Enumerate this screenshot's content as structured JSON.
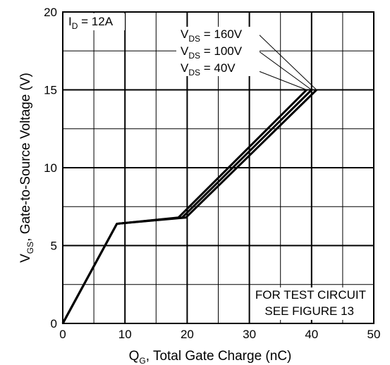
{
  "chart_data": {
    "type": "line",
    "title": "",
    "xlabel": {
      "main": "Q",
      "sub": "G",
      "rest": ", Total Gate Charge (nC)"
    },
    "ylabel": {
      "main": "V",
      "sub": "GS",
      "rest": ", Gate-to-Source Voltage (V)"
    },
    "xlim": [
      0,
      50
    ],
    "ylim": [
      0,
      20
    ],
    "x_major_ticks": [
      0,
      10,
      20,
      30,
      40,
      50
    ],
    "y_major_ticks": [
      0,
      5,
      10,
      15,
      20
    ],
    "x_tick_labels": [
      "0",
      "10",
      "20",
      "30",
      "40",
      "50"
    ],
    "y_tick_labels": [
      "0",
      "5",
      "10",
      "15",
      "20"
    ],
    "grid": true,
    "series": [
      {
        "name": "VDS = 40V",
        "x": [
          0,
          8.7,
          18.6,
          39.2
        ],
        "y": [
          0,
          6.4,
          6.8,
          15
        ]
      },
      {
        "name": "VDS = 100V",
        "x": [
          0,
          8.7,
          19.2,
          40.0
        ],
        "y": [
          0,
          6.4,
          6.8,
          15
        ]
      },
      {
        "name": "VDS = 160V",
        "x": [
          0,
          8.7,
          19.8,
          40.8
        ],
        "y": [
          0,
          6.4,
          6.8,
          15
        ]
      }
    ],
    "annotations": {
      "id_label": {
        "main": "I",
        "sub": "D",
        "rest": " = 12A"
      },
      "vds_labels": [
        {
          "main": "V",
          "sub": "DS",
          "rest": " = 160V"
        },
        {
          "main": "V",
          "sub": "DS",
          "rest": " = 100V"
        },
        {
          "main": "V",
          "sub": "DS",
          "rest": " = 40V"
        }
      ],
      "note_lines": [
        "FOR TEST CIRCUIT",
        "SEE FIGURE 13"
      ]
    }
  }
}
